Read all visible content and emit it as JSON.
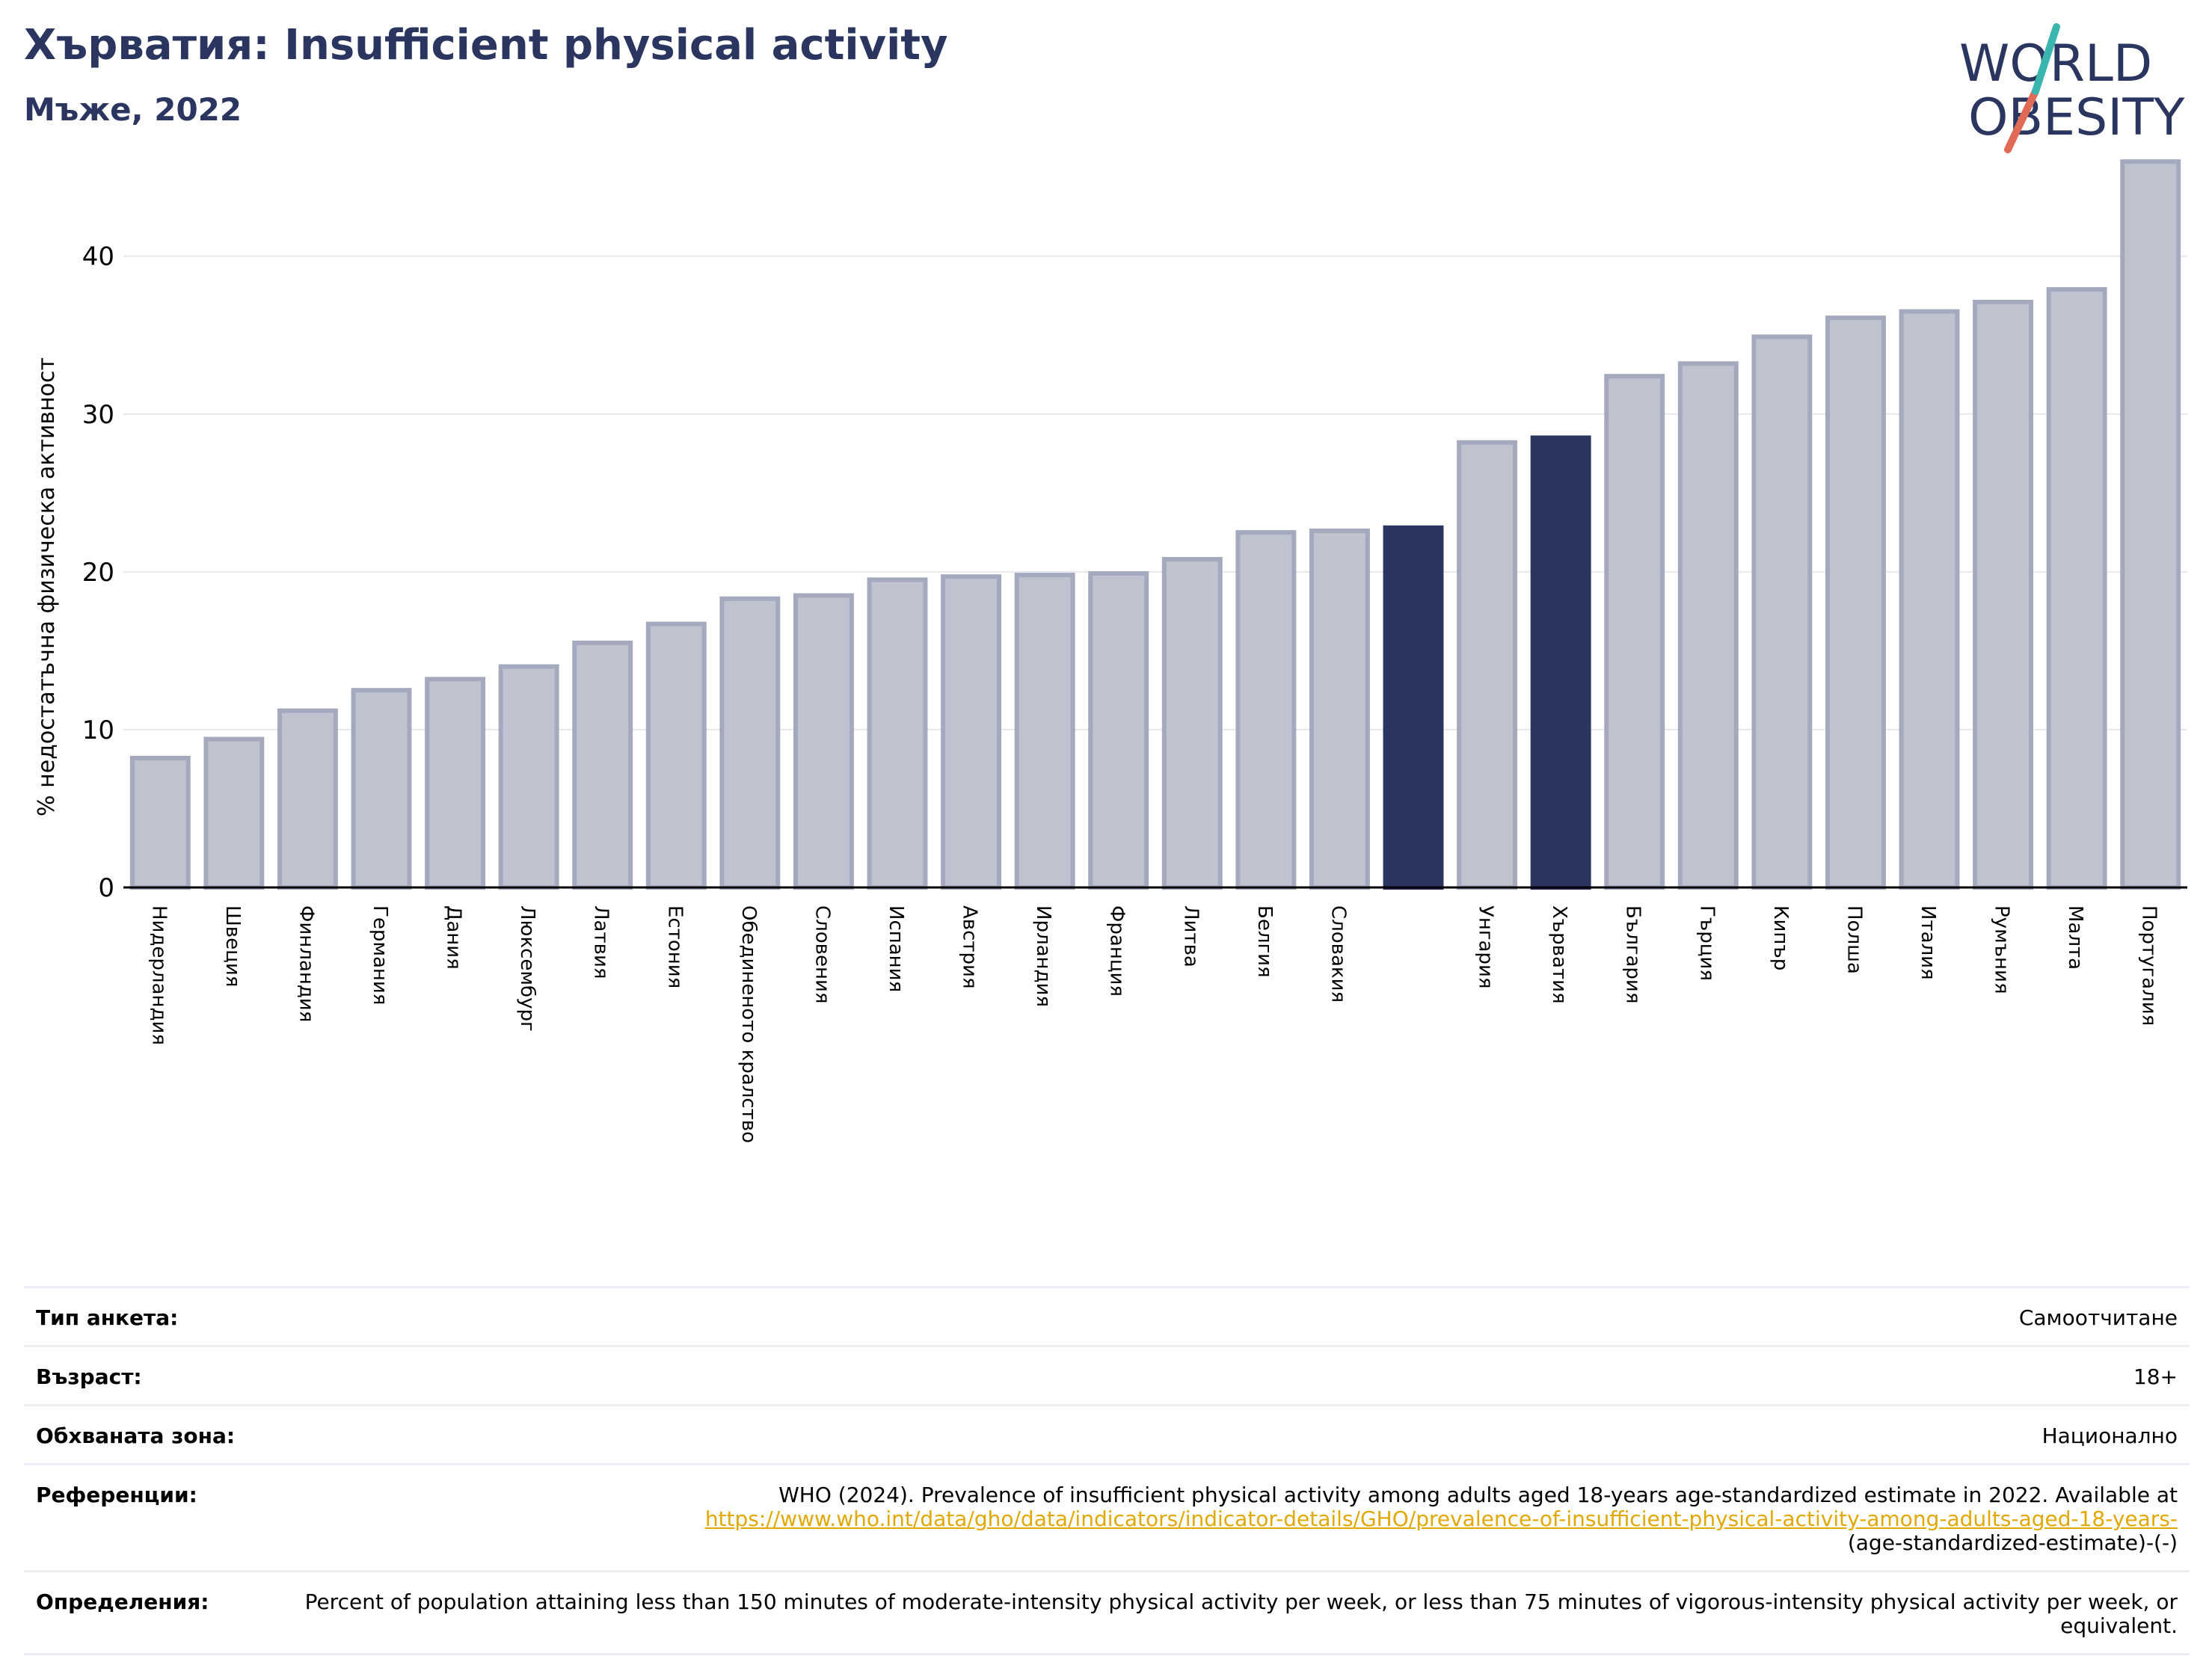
{
  "header": {
    "title": "Хърватия: Insufficient physical activity",
    "subtitle": "Мъже, 2022"
  },
  "logo": {
    "line1": "WORLD",
    "line2": "OBESITY",
    "colors": {
      "text": "#2a3560",
      "accent_teal": "#3ab5b0",
      "accent_red": "#e06a55"
    }
  },
  "colors": {
    "bar_fill": "#bfc2cf",
    "bar_stroke": "#a5a9bd",
    "bar_highlight": "#2a3560",
    "grid": "#e6e8ee",
    "axis": "#000000"
  },
  "chart_data": {
    "type": "bar",
    "title": "",
    "xlabel": "",
    "ylabel": "% недостатъчна физическа активност",
    "ylim": [
      0,
      47
    ],
    "yticks": [
      0,
      10,
      20,
      30,
      40
    ],
    "grid": true,
    "categories": [
      "Нидерландия",
      "Швеция",
      "Финландия",
      "Германия",
      "Дания",
      "Люксембург",
      "Латвия",
      "Естония",
      "Обединеното кралство",
      "Словения",
      "Испания",
      "Австрия",
      "Ирландия",
      "Франция",
      "Литва",
      "Белгия",
      "Словакия",
      "",
      "Унгария",
      "Хърватия",
      "България",
      "Гърция",
      "Кипър",
      "Полша",
      "Италия",
      "Румъния",
      "Малта",
      "Португалия"
    ],
    "values": [
      8.2,
      9.4,
      11.2,
      12.5,
      13.2,
      14.0,
      15.5,
      16.7,
      18.3,
      18.5,
      19.5,
      19.7,
      19.8,
      19.9,
      20.8,
      22.5,
      22.6,
      22.8,
      28.2,
      28.5,
      32.4,
      33.2,
      34.9,
      36.1,
      36.5,
      37.1,
      37.9,
      46.0
    ],
    "highlighted": [
      "",
      "Хърватия"
    ]
  },
  "info": {
    "survey_type": {
      "label": "Тип анкета:",
      "value": "Самоотчитане"
    },
    "age": {
      "label": "Възраст:",
      "value": "18+"
    },
    "coverage": {
      "label": "Обхваната зона:",
      "value": "Национално"
    },
    "references": {
      "label": "Референции:",
      "text": "WHO (2024). Prevalence of insufficient physical activity among adults aged 18-years age-standardized estimate in 2022. Available at",
      "link": "https://www.who.int/data/gho/data/indicators/indicator-details/GHO/prevalence-of-insufficient-physical-activity-among-adults-aged-18-years-",
      "tail": "(age-standardized-estimate)-(-)"
    },
    "definitions": {
      "label": "Определения:",
      "value": "Percent of population attaining less than 150 minutes of moderate-intensity physical activity per week, or less than 75 minutes of vigorous-intensity physical activity per week, or equivalent."
    }
  }
}
